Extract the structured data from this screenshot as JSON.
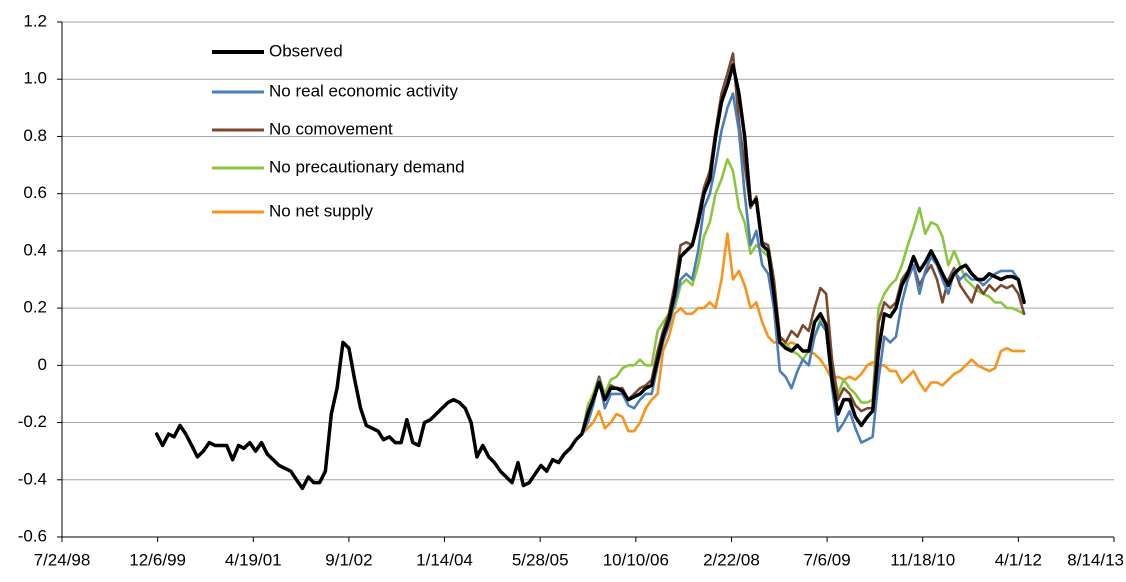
{
  "chart_data": {
    "type": "line",
    "x": [
      "12/1/99",
      "1/1/00",
      "2/1/00",
      "3/1/00",
      "4/1/00",
      "5/1/00",
      "6/1/00",
      "7/1/00",
      "8/1/00",
      "9/1/00",
      "10/1/00",
      "11/1/00",
      "12/1/00",
      "1/1/01",
      "2/1/01",
      "3/1/01",
      "4/1/01",
      "5/1/01",
      "6/1/01",
      "7/1/01",
      "8/1/01",
      "9/1/01",
      "10/1/01",
      "11/1/01",
      "12/1/01",
      "1/1/02",
      "2/1/02",
      "3/1/02",
      "4/1/02",
      "5/1/02",
      "6/1/02",
      "7/1/02",
      "8/1/02",
      "9/1/02",
      "10/1/02",
      "11/1/02",
      "12/1/02",
      "1/1/03",
      "2/1/03",
      "3/1/03",
      "4/1/03",
      "5/1/03",
      "6/1/03",
      "7/1/03",
      "8/1/03",
      "9/1/03",
      "10/1/03",
      "11/1/03",
      "12/1/03",
      "1/1/04",
      "2/1/04",
      "3/1/04",
      "4/1/04",
      "5/1/04",
      "6/1/04",
      "7/1/04",
      "8/1/04",
      "9/1/04",
      "10/1/04",
      "11/1/04",
      "12/1/04",
      "1/1/05",
      "2/1/05",
      "3/1/05",
      "4/1/05",
      "5/1/05",
      "6/1/05",
      "7/1/05",
      "8/1/05",
      "9/1/05",
      "10/1/05",
      "11/1/05",
      "12/1/05",
      "1/1/06",
      "2/1/06",
      "3/1/06",
      "4/1/06",
      "5/1/06",
      "6/1/06",
      "7/1/06",
      "8/1/06",
      "9/1/06",
      "10/1/06",
      "11/1/06",
      "12/1/06",
      "1/1/07",
      "2/1/07",
      "3/1/07",
      "4/1/07",
      "5/1/07",
      "6/1/07",
      "7/1/07",
      "8/1/07",
      "9/1/07",
      "10/1/07",
      "11/1/07",
      "12/1/07",
      "1/1/08",
      "2/1/08",
      "3/1/08",
      "4/1/08",
      "5/1/08",
      "6/1/08",
      "7/1/08",
      "8/1/08",
      "9/1/08",
      "10/1/08",
      "11/1/08",
      "12/1/08",
      "1/1/09",
      "2/1/09",
      "3/1/09",
      "4/1/09",
      "5/1/09",
      "6/1/09",
      "7/1/09",
      "8/1/09",
      "9/1/09",
      "10/1/09",
      "11/1/09",
      "12/1/09",
      "1/1/10",
      "2/1/10",
      "3/1/10",
      "4/1/10",
      "5/1/10",
      "6/1/10",
      "7/1/10",
      "8/1/10",
      "9/1/10",
      "10/1/10",
      "11/1/10",
      "12/1/10",
      "1/1/11",
      "2/1/11",
      "3/1/11",
      "4/1/11",
      "5/1/11",
      "6/1/11",
      "7/1/11",
      "8/1/11",
      "9/1/11",
      "10/1/11",
      "11/1/11",
      "12/1/11",
      "1/1/12",
      "2/1/12",
      "3/1/12",
      "4/1/12",
      "5/1/12"
    ],
    "series": [
      {
        "name": "Observed",
        "color": "#000000",
        "values": [
          -0.24,
          -0.28,
          -0.24,
          -0.25,
          -0.21,
          -0.24,
          -0.28,
          -0.32,
          -0.3,
          -0.27,
          -0.28,
          -0.28,
          -0.28,
          -0.33,
          -0.28,
          -0.29,
          -0.27,
          -0.3,
          -0.27,
          -0.31,
          -0.33,
          -0.35,
          -0.36,
          -0.37,
          -0.4,
          -0.43,
          -0.39,
          -0.41,
          -0.41,
          -0.37,
          -0.17,
          -0.08,
          0.08,
          0.06,
          -0.05,
          -0.15,
          -0.21,
          -0.22,
          -0.23,
          -0.26,
          -0.25,
          -0.27,
          -0.27,
          -0.19,
          -0.27,
          -0.28,
          -0.2,
          -0.19,
          -0.17,
          -0.15,
          -0.13,
          -0.12,
          -0.13,
          -0.15,
          -0.2,
          -0.32,
          -0.28,
          -0.32,
          -0.34,
          -0.37,
          -0.39,
          -0.41,
          -0.34,
          -0.42,
          -0.41,
          -0.38,
          -0.35,
          -0.37,
          -0.33,
          -0.34,
          -0.31,
          -0.29,
          -0.26,
          -0.24,
          -0.17,
          -0.12,
          -0.06,
          -0.12,
          -0.08,
          -0.08,
          -0.09,
          -0.12,
          -0.11,
          -0.1,
          -0.08,
          -0.07,
          0.02,
          0.1,
          0.16,
          0.25,
          0.38,
          0.4,
          0.42,
          0.5,
          0.6,
          0.65,
          0.8,
          0.92,
          0.98,
          1.05,
          0.95,
          0.8,
          0.56,
          0.58,
          0.42,
          0.4,
          0.25,
          0.08,
          0.06,
          0.05,
          0.07,
          0.05,
          0.05,
          0.15,
          0.18,
          0.14,
          -0.05,
          -0.17,
          -0.12,
          -0.12,
          -0.18,
          -0.21,
          -0.18,
          -0.16,
          0.05,
          0.18,
          0.17,
          0.2,
          0.28,
          0.32,
          0.38,
          0.33,
          0.36,
          0.4,
          0.36,
          0.32,
          0.28,
          0.32,
          0.34,
          0.35,
          0.32,
          0.3,
          0.3,
          0.32,
          0.31,
          0.3,
          0.31,
          0.31,
          0.3,
          0.22
        ]
      },
      {
        "name": "No real economic activity",
        "color": "#4a7ebb",
        "values": [
          null,
          null,
          null,
          null,
          null,
          null,
          null,
          null,
          null,
          null,
          null,
          null,
          null,
          null,
          null,
          null,
          null,
          null,
          null,
          null,
          null,
          null,
          null,
          null,
          null,
          null,
          null,
          null,
          null,
          null,
          null,
          null,
          null,
          null,
          null,
          null,
          null,
          null,
          null,
          null,
          null,
          null,
          null,
          null,
          null,
          null,
          null,
          null,
          null,
          null,
          null,
          null,
          null,
          null,
          null,
          null,
          null,
          null,
          null,
          null,
          null,
          null,
          null,
          null,
          null,
          null,
          null,
          null,
          null,
          null,
          null,
          null,
          null,
          -0.24,
          -0.2,
          -0.14,
          -0.05,
          -0.15,
          -0.1,
          -0.1,
          -0.1,
          -0.14,
          -0.15,
          -0.12,
          -0.1,
          -0.1,
          0.0,
          0.08,
          0.14,
          0.22,
          0.3,
          0.32,
          0.3,
          0.4,
          0.55,
          0.6,
          0.7,
          0.82,
          0.9,
          0.95,
          0.82,
          0.6,
          0.42,
          0.47,
          0.35,
          0.32,
          0.2,
          -0.02,
          -0.04,
          -0.08,
          -0.02,
          0.02,
          0.0,
          0.1,
          0.15,
          0.12,
          -0.08,
          -0.23,
          -0.2,
          -0.16,
          -0.22,
          -0.27,
          -0.26,
          -0.25,
          -0.05,
          0.1,
          0.08,
          0.1,
          0.22,
          0.3,
          0.35,
          0.25,
          0.33,
          0.38,
          0.35,
          0.3,
          0.25,
          0.33,
          0.3,
          0.32,
          0.3,
          0.3,
          0.28,
          0.3,
          0.32,
          0.33,
          0.33,
          0.33,
          0.3,
          0.22
        ]
      },
      {
        "name": "No comovement",
        "color": "#7b4a2e",
        "values": [
          null,
          null,
          null,
          null,
          null,
          null,
          null,
          null,
          null,
          null,
          null,
          null,
          null,
          null,
          null,
          null,
          null,
          null,
          null,
          null,
          null,
          null,
          null,
          null,
          null,
          null,
          null,
          null,
          null,
          null,
          null,
          null,
          null,
          null,
          null,
          null,
          null,
          null,
          null,
          null,
          null,
          null,
          null,
          null,
          null,
          null,
          null,
          null,
          null,
          null,
          null,
          null,
          null,
          null,
          null,
          null,
          null,
          null,
          null,
          null,
          null,
          null,
          null,
          null,
          null,
          null,
          null,
          null,
          null,
          null,
          null,
          null,
          null,
          -0.24,
          -0.16,
          -0.12,
          -0.04,
          -0.12,
          -0.07,
          -0.08,
          -0.08,
          -0.12,
          -0.1,
          -0.08,
          -0.07,
          -0.05,
          0.05,
          0.12,
          0.18,
          0.28,
          0.42,
          0.43,
          0.42,
          0.52,
          0.62,
          0.68,
          0.82,
          0.95,
          1.02,
          1.09,
          0.85,
          0.7,
          0.55,
          0.59,
          0.43,
          0.42,
          0.3,
          0.1,
          0.08,
          0.12,
          0.1,
          0.14,
          0.12,
          0.2,
          0.27,
          0.25,
          0.02,
          -0.12,
          -0.08,
          -0.1,
          -0.14,
          -0.16,
          -0.15,
          -0.15,
          0.15,
          0.22,
          0.2,
          0.22,
          0.3,
          0.33,
          0.35,
          0.28,
          0.32,
          0.35,
          0.3,
          0.22,
          0.3,
          0.34,
          0.28,
          0.25,
          0.22,
          0.28,
          0.25,
          0.28,
          0.26,
          0.28,
          0.27,
          0.28,
          0.25,
          0.18
        ]
      },
      {
        "name": "No precautionary demand",
        "color": "#8cc63f",
        "values": [
          null,
          null,
          null,
          null,
          null,
          null,
          null,
          null,
          null,
          null,
          null,
          null,
          null,
          null,
          null,
          null,
          null,
          null,
          null,
          null,
          null,
          null,
          null,
          null,
          null,
          null,
          null,
          null,
          null,
          null,
          null,
          null,
          null,
          null,
          null,
          null,
          null,
          null,
          null,
          null,
          null,
          null,
          null,
          null,
          null,
          null,
          null,
          null,
          null,
          null,
          null,
          null,
          null,
          null,
          null,
          null,
          null,
          null,
          null,
          null,
          null,
          null,
          null,
          null,
          null,
          null,
          null,
          null,
          null,
          null,
          null,
          null,
          null,
          -0.24,
          -0.14,
          -0.1,
          -0.04,
          -0.1,
          -0.05,
          -0.04,
          -0.01,
          0.0,
          0.0,
          0.02,
          0.0,
          0.0,
          0.12,
          0.15,
          0.18,
          0.2,
          0.28,
          0.3,
          0.28,
          0.35,
          0.45,
          0.5,
          0.6,
          0.65,
          0.72,
          0.68,
          0.55,
          0.5,
          0.39,
          0.42,
          0.4,
          0.38,
          0.3,
          0.1,
          0.08,
          0.05,
          0.04,
          0.02,
          0.05,
          0.1,
          0.16,
          0.15,
          0.0,
          -0.1,
          -0.05,
          -0.08,
          -0.1,
          -0.13,
          -0.13,
          -0.12,
          0.2,
          0.25,
          0.28,
          0.3,
          0.35,
          0.42,
          0.48,
          0.55,
          0.46,
          0.5,
          0.49,
          0.45,
          0.35,
          0.4,
          0.35,
          0.3,
          0.28,
          0.26,
          0.25,
          0.24,
          0.22,
          0.22,
          0.2,
          0.2,
          0.19,
          0.18
        ]
      },
      {
        "name": "No net supply",
        "color": "#f7941d",
        "values": [
          null,
          null,
          null,
          null,
          null,
          null,
          null,
          null,
          null,
          null,
          null,
          null,
          null,
          null,
          null,
          null,
          null,
          null,
          null,
          null,
          null,
          null,
          null,
          null,
          null,
          null,
          null,
          null,
          null,
          null,
          null,
          null,
          null,
          null,
          null,
          null,
          null,
          null,
          null,
          null,
          null,
          null,
          null,
          null,
          null,
          null,
          null,
          null,
          null,
          null,
          null,
          null,
          null,
          null,
          null,
          null,
          null,
          null,
          null,
          null,
          null,
          null,
          null,
          null,
          null,
          null,
          null,
          null,
          null,
          null,
          null,
          null,
          null,
          -0.24,
          -0.22,
          -0.2,
          -0.16,
          -0.22,
          -0.2,
          -0.17,
          -0.18,
          -0.23,
          -0.23,
          -0.2,
          -0.15,
          -0.12,
          -0.1,
          0.05,
          0.1,
          0.18,
          0.2,
          0.18,
          0.18,
          0.2,
          0.2,
          0.22,
          0.2,
          0.3,
          0.46,
          0.3,
          0.33,
          0.28,
          0.2,
          0.22,
          0.15,
          0.1,
          0.08,
          0.08,
          0.07,
          0.08,
          0.07,
          0.05,
          0.05,
          0.04,
          0.02,
          -0.01,
          -0.05,
          -0.04,
          -0.05,
          -0.04,
          -0.05,
          -0.03,
          0.0,
          0.01,
          0.0,
          0.0,
          -0.02,
          -0.02,
          -0.06,
          -0.04,
          -0.02,
          -0.06,
          -0.09,
          -0.06,
          -0.06,
          -0.07,
          -0.05,
          -0.03,
          -0.02,
          0.0,
          0.02,
          0.0,
          -0.01,
          -0.02,
          -0.01,
          0.05,
          0.06,
          0.05,
          0.05,
          0.05
        ]
      }
    ],
    "xlim": [
      "7/24/98",
      "8/14/13"
    ],
    "xticks": [
      "7/24/98",
      "12/6/99",
      "4/19/01",
      "9/1/02",
      "1/14/04",
      "5/28/05",
      "10/10/06",
      "2/22/08",
      "7/6/09",
      "11/18/10",
      "4/1/12",
      "8/14/13"
    ],
    "ylim": [
      -0.6,
      1.2
    ],
    "yticks": [
      -0.6,
      -0.4,
      -0.2,
      0,
      0.2,
      0.4,
      0.6,
      0.8,
      {
        "value": 1,
        "label": "1.0"
      },
      1.2
    ],
    "grid": true,
    "legend": "top-left"
  }
}
